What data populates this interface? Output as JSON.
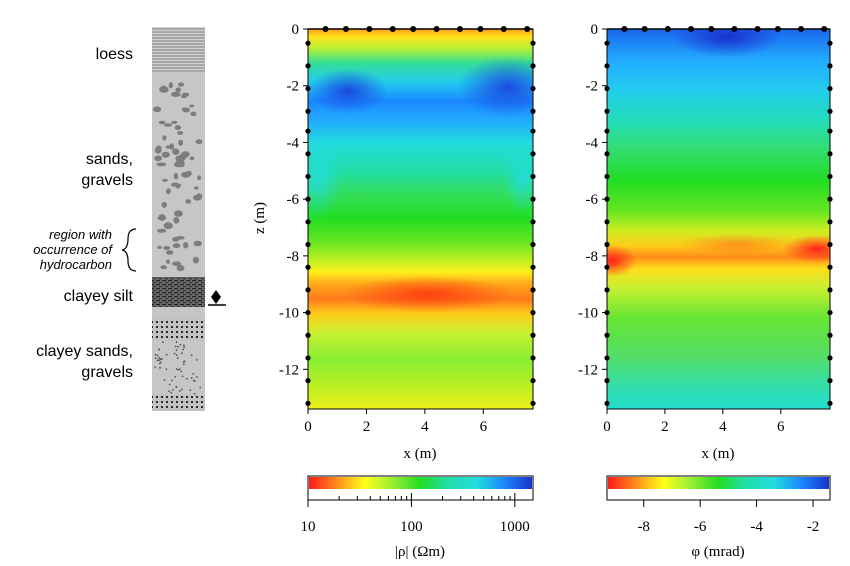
{
  "column": {
    "layers": [
      "loess",
      "sands,",
      "gravels",
      "region with",
      "occurrence of",
      "hydrocarbon",
      "clayey silt",
      "clayey sands,",
      "gravels"
    ]
  },
  "colors": {
    "ramp": [
      "#ff1a1a",
      "#ff8c1a",
      "#ffff1a",
      "#99ee33",
      "#22dd22",
      "#22ddaa",
      "#22dddd",
      "#1a88ff",
      "#1a33cc"
    ]
  },
  "chart_data": [
    {
      "type": "heatmap",
      "xlabel": "x (m)",
      "ylabel": "z (m)",
      "xlim": [
        0,
        7.7
      ],
      "ylim": [
        -13.4,
        0
      ],
      "xticks": [
        "0",
        "2",
        "4",
        "6"
      ],
      "xtick_values": [
        0,
        2,
        4,
        6
      ],
      "yticks": [
        "0",
        "-2",
        "-4",
        "-6",
        "-8",
        "-10",
        "-12"
      ],
      "ytick_values": [
        0,
        -2,
        -4,
        -6,
        -8,
        -10,
        -12
      ],
      "colorbar": {
        "scale": "log",
        "ticks": [
          "10",
          "100",
          "1000"
        ],
        "tick_values": [
          10,
          100,
          1000
        ],
        "range": [
          10,
          1500
        ],
        "label": "|ρ| (Ωm)"
      },
      "electrodes_top_x": [
        0.6,
        1.3,
        2.1,
        2.9,
        3.6,
        4.4,
        5.2,
        5.9,
        6.7,
        7.5
      ],
      "electrodes_side_z": [
        -0.5,
        -1.3,
        -2.1,
        -2.9,
        -3.6,
        -4.4,
        -5.2,
        -6.0,
        -6.8,
        -7.6,
        -8.4,
        -9.2,
        -10.0,
        -10.8,
        -11.6,
        -12.4,
        -13.2
      ]
    },
    {
      "type": "heatmap",
      "xlabel": "x (m)",
      "ylabel": "",
      "xlim": [
        0,
        7.7
      ],
      "ylim": [
        -13.4,
        0
      ],
      "xticks": [
        "0",
        "2",
        "4",
        "6"
      ],
      "xtick_values": [
        0,
        2,
        4,
        6
      ],
      "yticks": [
        "0",
        "-2",
        "-4",
        "-6",
        "-8",
        "-10",
        "-12"
      ],
      "ytick_values": [
        0,
        -2,
        -4,
        -6,
        -8,
        -10,
        -12
      ],
      "colorbar": {
        "scale": "linear",
        "ticks": [
          "-8",
          "-6",
          "-4",
          "-2"
        ],
        "tick_values": [
          -8,
          -6,
          -4,
          -2
        ],
        "range": [
          -9.3,
          -1.4
        ],
        "label": "φ (mrad)"
      },
      "electrodes_top_x": [
        0.6,
        1.3,
        2.1,
        2.9,
        3.6,
        4.4,
        5.2,
        5.9,
        6.7,
        7.5
      ],
      "electrodes_side_z": [
        -0.5,
        -1.3,
        -2.1,
        -2.9,
        -3.6,
        -4.4,
        -5.2,
        -6.0,
        -6.8,
        -7.6,
        -8.4,
        -9.2,
        -10.0,
        -10.8,
        -11.6,
        -12.4,
        -13.2
      ]
    }
  ]
}
